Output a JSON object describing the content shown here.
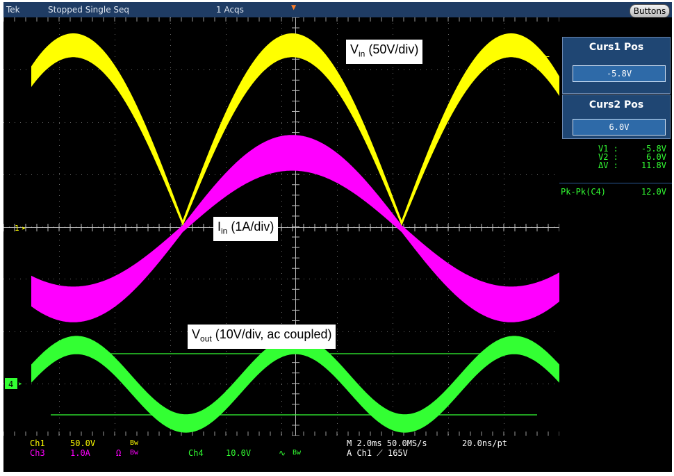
{
  "topbar": {
    "brand": "Tek",
    "status": "Stopped  Single Seq",
    "acqs": "1 Acqs",
    "buttons_label": "Buttons"
  },
  "cursors": {
    "curs1_title": "Curs1 Pos",
    "curs1_value": "-5.8V",
    "curs2_title": "Curs2 Pos",
    "curs2_value": "6.0V",
    "readouts": [
      {
        "name": "V1 :",
        "value": "-5.8V"
      },
      {
        "name": "V2 :",
        "value": "6.0V"
      },
      {
        "name": "ΔV :",
        "value": "11.8V"
      }
    ],
    "pkpk_label": "Pk-Pk(C4)",
    "pkpk_value": "12.0V"
  },
  "bottom": {
    "ch1": "Ch1",
    "ch1_scale": "50.0V",
    "ch1_bw": "Bw",
    "ch3": "Ch3",
    "ch3_scale": "1.0A",
    "ch3_omega": "Ω",
    "ch3_bw": "Bw",
    "ch4": "Ch4",
    "ch4_scale": "10.0V",
    "ch4_coupling": "∿",
    "ch4_bw": "Bw",
    "timebase": "M 2.0ms 50.0MS/s",
    "resolution": "20.0ns/pt",
    "trigger": "A  Ch1  ⟋  165V"
  },
  "markers": {
    "ch1": "1",
    "ch4": "4"
  },
  "labels": {
    "vin_main": "V",
    "vin_sub": "in",
    "vin_rest": " (50V/div)",
    "iin_main": "I",
    "iin_sub": "in",
    "iin_rest": " (1A/div)",
    "vout_main": "V",
    "vout_sub": "out",
    "vout_rest": " (10V/div, ac coupled)"
  },
  "colors": {
    "ch1": "#ffff00",
    "ch3": "#ff00ff",
    "ch4": "#33ff33",
    "background": "#000000",
    "panel": "#1f4673"
  },
  "chart_data": {
    "type": "line",
    "title": "",
    "x_divisions": 10,
    "y_divisions": 8,
    "series": [
      {
        "name": "Ch1 Vin (rectified sine)",
        "color": "#ffff00",
        "y_div_peak": 3.4,
        "y_div_min": 0.1,
        "band_div": 0.35
      },
      {
        "name": "Ch3 Iin",
        "color": "#ff00ff",
        "y_div_amplitude": 1.45,
        "band_div": 0.55
      },
      {
        "name": "Ch4 Vout",
        "color": "#33ff33",
        "y_div_amplitude": 0.75,
        "band_div": 0.35
      }
    ],
    "cursors_div": [
      -1.15,
      1.2
    ]
  }
}
